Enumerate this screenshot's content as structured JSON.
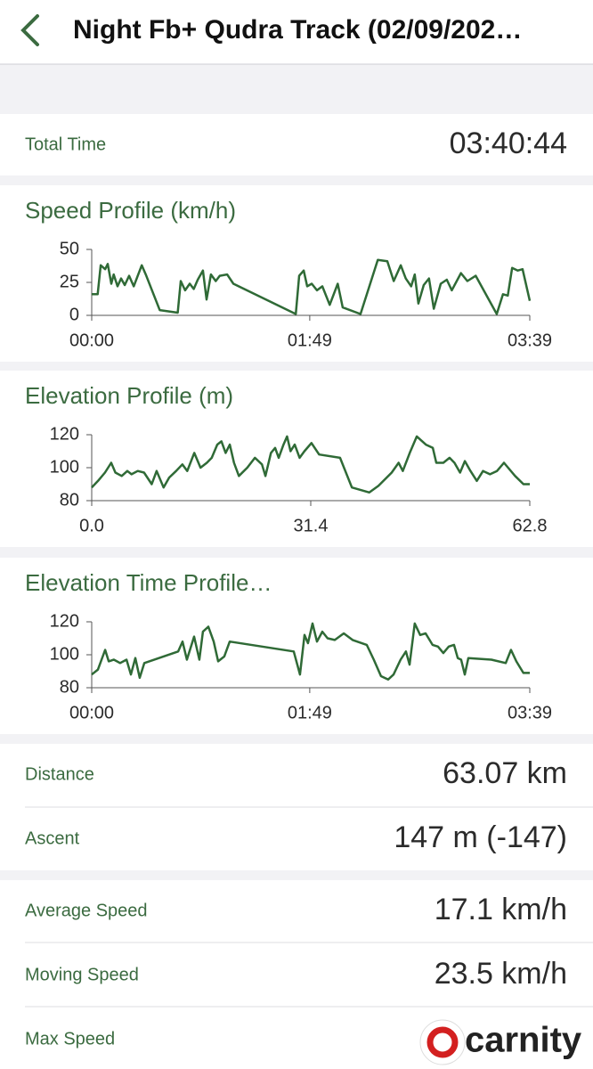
{
  "header": {
    "title": "Night Fb+ Qudra Track (02/09/202…"
  },
  "summary": {
    "label": "Total Time",
    "value": "03:40:44"
  },
  "chart_data": [
    {
      "type": "line",
      "title": "Speed Profile (km/h)",
      "color": "#2f6a36",
      "x": [
        0,
        3,
        4.5,
        6.7,
        8,
        9.8,
        11,
        12.9,
        14.7,
        16.5,
        18.7,
        21,
        23,
        25,
        27,
        34,
        43,
        44.5,
        46.7,
        49,
        51,
        53,
        55.6,
        57.4,
        59.6,
        62,
        64,
        67.7,
        70.8,
        102,
        103.7,
        106,
        107.7,
        110,
        112.6,
        115.3,
        119,
        123,
        125.5,
        134.4,
        143,
        147.8,
        151,
        154.5,
        157,
        159.7,
        161.5,
        163.3,
        166,
        168.6,
        171,
        174.5,
        177.5,
        180,
        184.6,
        187.8,
        192,
        202.5,
        205.6,
        208,
        210.2,
        213,
        215.4,
        219
      ],
      "values": [
        16,
        16,
        38,
        35,
        39,
        24,
        31,
        22,
        28,
        23,
        30,
        22,
        30,
        38,
        31,
        4,
        2,
        26,
        19,
        24,
        20,
        27,
        34,
        12,
        31,
        26,
        30,
        31,
        24,
        1,
        30,
        34,
        22,
        24,
        19,
        22,
        8,
        24,
        6,
        1,
        42,
        41,
        26,
        38,
        28,
        22,
        31,
        9,
        23,
        28,
        5,
        24,
        27,
        19,
        32,
        26,
        30,
        1,
        16,
        15,
        36,
        34,
        35,
        11
      ],
      "xlim": [
        0,
        219
      ],
      "xticks": [
        {
          "value": 0,
          "label": "00:00"
        },
        {
          "value": 109,
          "label": "01:49"
        },
        {
          "value": 219,
          "label": "03:39"
        }
      ],
      "ylim": [
        0,
        50
      ],
      "yticks": [
        0,
        25,
        50
      ]
    },
    {
      "type": "line",
      "title": "Elevation Profile (m)",
      "color": "#2f6a36",
      "x": [
        0,
        0.9,
        1.9,
        2.8,
        3.4,
        4.3,
        5.1,
        5.7,
        6.6,
        7.5,
        8.6,
        9.3,
        10.3,
        11.1,
        12.1,
        13,
        13.7,
        14.7,
        15.6,
        16.5,
        17.2,
        18,
        18.6,
        19.2,
        19.8,
        20.4,
        21.1,
        22.3,
        23.4,
        24.4,
        24.9,
        25.7,
        26.3,
        26.8,
        27.5,
        28,
        28.5,
        29.1,
        29.8,
        30.5,
        31.5,
        32.6,
        35.6,
        37.3,
        39.8,
        41.1,
        43,
        44,
        44.6,
        45.6,
        46.6,
        47.9,
        48.9,
        49.4,
        50.4,
        51.3,
        52,
        52.8,
        53.5,
        54.3,
        55.2,
        56.1,
        57.1,
        58.1,
        59.1,
        60.7,
        61.9,
        62.8
      ],
      "values": [
        88,
        92,
        97,
        103,
        97,
        95,
        98,
        96,
        98,
        97,
        90,
        98,
        88,
        94,
        98,
        102,
        98,
        109,
        100,
        103,
        106,
        114,
        116,
        109,
        114,
        103,
        95,
        100,
        106,
        102,
        95,
        109,
        112,
        106,
        114,
        119,
        110,
        114,
        106,
        110,
        115,
        108,
        106,
        88,
        85,
        89,
        97,
        103,
        98,
        109,
        119,
        114,
        112,
        103,
        103,
        106,
        103,
        97,
        104,
        98,
        92,
        98,
        96,
        98,
        103,
        95,
        90,
        90
      ],
      "xlim": [
        0,
        62.8
      ],
      "xticks": [
        {
          "value": 0,
          "label": "0.0"
        },
        31.4,
        62.8
      ],
      "ylim": [
        80,
        120
      ],
      "yticks": [
        80,
        100,
        120
      ]
    },
    {
      "type": "line",
      "title": "Elevation Time Profile…",
      "color": "#2f6a36",
      "x": [
        0,
        3.1,
        6.7,
        8.5,
        11.1,
        14.2,
        17.4,
        19.6,
        21.8,
        24,
        26.3,
        43.2,
        45.4,
        47.6,
        51.2,
        53.8,
        55.6,
        58.3,
        61,
        63.2,
        66.3,
        69,
        101,
        104.1,
        106.4,
        108.1,
        110.4,
        112.6,
        115.3,
        117.9,
        121.5,
        126,
        130.4,
        137.5,
        141,
        144.6,
        148.2,
        150.9,
        154.4,
        157.1,
        158.9,
        161.5,
        164.2,
        166.9,
        170.4,
        173.1,
        175.8,
        178.5,
        181.1,
        183,
        184.7,
        186.5,
        188.3,
        199.8,
        207,
        209.6,
        212.3,
        215.8,
        219
      ],
      "values": [
        88,
        91,
        103,
        96,
        97,
        95,
        97,
        88,
        98,
        86,
        95,
        102,
        108,
        97,
        111,
        97,
        114,
        117,
        108,
        96,
        99,
        108,
        102,
        88,
        112,
        107,
        119,
        108,
        114,
        110,
        109,
        113,
        109,
        106,
        97,
        87,
        85,
        88,
        97,
        102,
        94,
        119,
        112,
        113,
        106,
        105,
        101,
        105,
        106,
        98,
        97,
        88,
        98,
        97,
        95,
        103,
        96,
        89,
        89
      ],
      "xlim": [
        0,
        219
      ],
      "xticks": [
        {
          "value": 0,
          "label": "00:00"
        },
        {
          "value": 109,
          "label": "01:49"
        },
        {
          "value": 219,
          "label": "03:39"
        }
      ],
      "ylim": [
        80,
        120
      ],
      "yticks": [
        80,
        100,
        120
      ]
    }
  ],
  "stats": [
    {
      "label": "Distance",
      "value": "63.07 km"
    },
    {
      "label": "Ascent",
      "value": "147 m (-147)"
    }
  ],
  "speed_stats": [
    {
      "label": "Average Speed",
      "value": "17.1 km/h"
    },
    {
      "label": "Moving Speed",
      "value": "23.5 km/h"
    },
    {
      "label": "Max Speed"
    }
  ],
  "watermark": "carnity"
}
